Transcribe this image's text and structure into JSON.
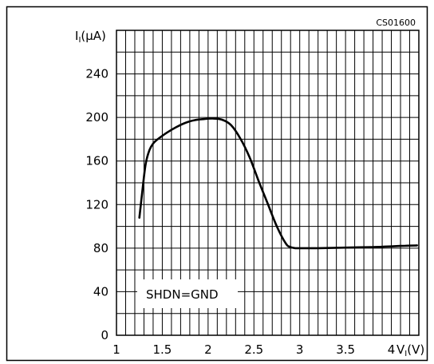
{
  "chart_data": {
    "type": "line",
    "title": "",
    "code": "CS01600",
    "ylabel": "I_I(μA)",
    "ylabel_main": "I",
    "ylabel_sub": "I",
    "ylabel_unit": "(μA)",
    "xlabel": "V_I(V)",
    "xlabel_main": "V",
    "xlabel_sub": "I",
    "xlabel_unit": "(V)",
    "annotation": "SHDN=GND",
    "xlim": [
      1,
      4.3
    ],
    "ylim": [
      0,
      280
    ],
    "x_ticks": [
      1,
      1.5,
      2,
      2.5,
      3,
      3.5,
      4
    ],
    "x_tick_labels": [
      "1",
      "1.5",
      "2",
      "2.5",
      "3",
      "3.5",
      "4"
    ],
    "y_ticks": [
      0,
      40,
      80,
      120,
      160,
      200,
      240
    ],
    "y_tick_labels": [
      "0",
      "40",
      "80",
      "120",
      "160",
      "200",
      "240"
    ],
    "grid": true,
    "series": [
      {
        "x": [
          1.25,
          1.29,
          1.32,
          1.36,
          1.4,
          1.45,
          1.55,
          1.65,
          1.75,
          1.85,
          1.95,
          2.05,
          2.15,
          2.25,
          2.35,
          2.45,
          2.55,
          2.65,
          2.75,
          2.85,
          2.9,
          2.95,
          3.0,
          3.2,
          3.5,
          3.8,
          4.1,
          4.28
        ],
        "y": [
          108,
          138,
          158,
          170,
          176,
          180,
          186,
          191,
          195,
          197.5,
          198.5,
          199,
          198,
          193,
          181,
          164,
          142,
          121,
          100,
          84,
          81,
          80,
          80,
          80,
          80.5,
          81,
          82,
          82.5
        ]
      }
    ]
  }
}
